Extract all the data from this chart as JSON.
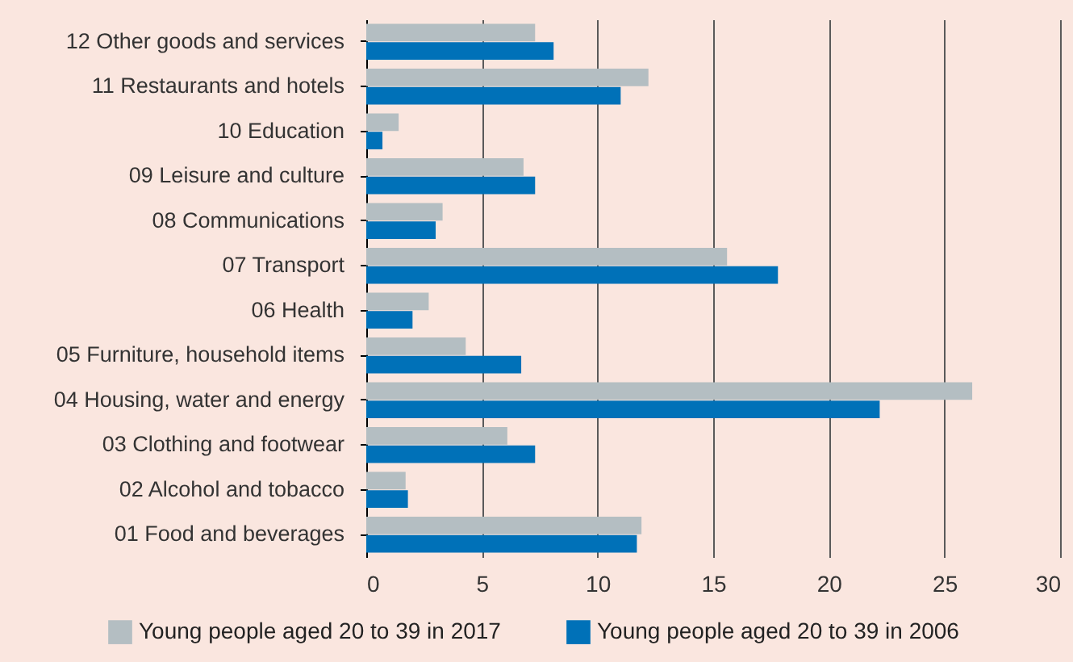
{
  "chart_data": {
    "type": "bar",
    "orientation": "horizontal",
    "categories": [
      "12 Other goods and services",
      "11 Restaurants and hotels",
      "10 Education",
      "09 Leisure and culture",
      "08 Communications",
      "07 Transport",
      "06 Health",
      "05 Furniture, household items",
      "04 Housing, water and energy",
      "03 Clothing and footwear",
      "02 Alcohol and tobacco",
      "01 Food and beverages"
    ],
    "series": [
      {
        "name": "Young people aged 20 to 39 in 2017",
        "color": "#b4bec2",
        "values": [
          7.3,
          12.2,
          1.4,
          6.8,
          3.3,
          15.6,
          2.7,
          4.3,
          26.2,
          6.1,
          1.7,
          11.9
        ]
      },
      {
        "name": "Young people aged 20 to 39 in 2006",
        "color": "#0071b8",
        "values": [
          8.1,
          11.0,
          0.7,
          7.3,
          3.0,
          17.8,
          2.0,
          6.7,
          22.2,
          7.3,
          1.8,
          11.7
        ]
      }
    ],
    "xlim": [
      0,
      30
    ],
    "xticks": [
      0,
      5,
      10,
      15,
      20,
      25,
      30
    ],
    "grid": "x",
    "legend": "bottom"
  }
}
